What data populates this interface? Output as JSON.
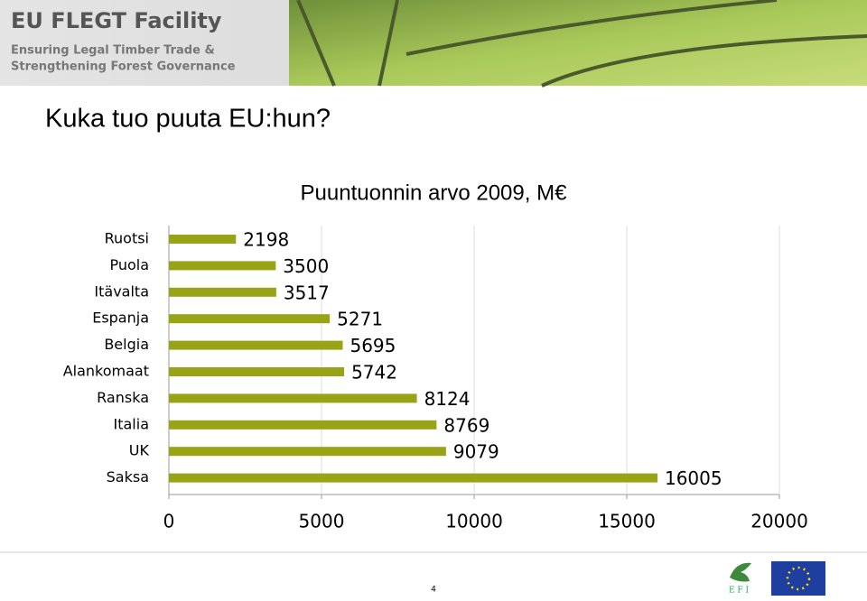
{
  "header": {
    "logo_title": "EU FLEGT Facility",
    "tagline_1": "Ensuring Legal Timber Trade &",
    "tagline_2": "Strengthening Forest Governance"
  },
  "slide_title": "Kuka tuo puuta EU:hun?",
  "chart_data": {
    "type": "bar",
    "orientation": "horizontal",
    "title": "Puuntuonnin arvo 2009, M€",
    "categories": [
      "Ruotsi",
      "Puola",
      "Itävalta",
      "Espanja",
      "Belgia",
      "Alankomaat",
      "Ranska",
      "Italia",
      "UK",
      "Saksa"
    ],
    "values": [
      2198,
      3500,
      3517,
      5271,
      5695,
      5742,
      8124,
      8769,
      9079,
      16005
    ],
    "color": "#99a316",
    "xlim": [
      0,
      20000
    ],
    "xticks": [
      0,
      5000,
      10000,
      15000,
      20000
    ],
    "grid": true
  },
  "footer": {
    "page_number": "4",
    "logo_text": "E F I"
  }
}
